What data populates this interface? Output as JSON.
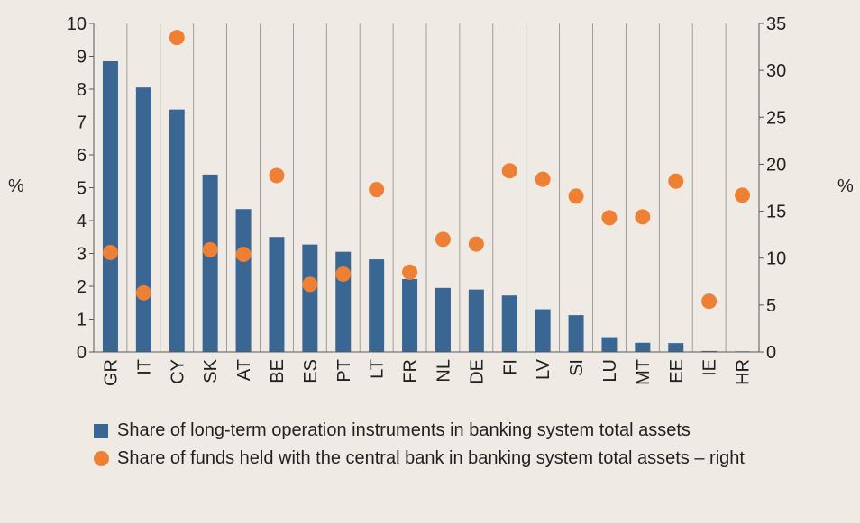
{
  "chart_data": {
    "type": "bar",
    "categories": [
      "GR",
      "IT",
      "CY",
      "SK",
      "AT",
      "BE",
      "ES",
      "PT",
      "LT",
      "FR",
      "NL",
      "DE",
      "FI",
      "LV",
      "SI",
      "LU",
      "MT",
      "EE",
      "IE",
      "HR"
    ],
    "series": [
      {
        "name": "Share of long-term operation instruments in banking system total assets",
        "type": "bar",
        "axis": "left",
        "color": "#3a6694",
        "values": [
          8.85,
          8.05,
          7.38,
          5.4,
          4.35,
          3.5,
          3.27,
          3.05,
          2.82,
          2.22,
          1.95,
          1.9,
          1.72,
          1.3,
          1.12,
          0.45,
          0.28,
          0.27,
          0.03,
          0.02
        ]
      },
      {
        "name": "Share of funds held with the central bank in banking system total assets – right",
        "type": "scatter",
        "axis": "right",
        "color": "#ee8035",
        "values": [
          10.6,
          6.3,
          33.5,
          10.9,
          10.4,
          18.8,
          7.2,
          8.3,
          17.3,
          8.5,
          12.0,
          11.5,
          19.3,
          18.4,
          16.6,
          14.3,
          14.4,
          18.2,
          5.4,
          16.7
        ]
      }
    ],
    "ylabel": "%",
    "y2label": "%",
    "ylim": [
      0,
      10
    ],
    "y2lim": [
      0,
      35
    ],
    "yticks": [
      "0",
      "1",
      "2",
      "3",
      "4",
      "5",
      "6",
      "7",
      "8",
      "9",
      "10"
    ],
    "y2ticks": [
      "0",
      "5",
      "10",
      "15",
      "20",
      "25",
      "30",
      "35"
    ],
    "grid": "vertical",
    "legend": "bottom"
  }
}
